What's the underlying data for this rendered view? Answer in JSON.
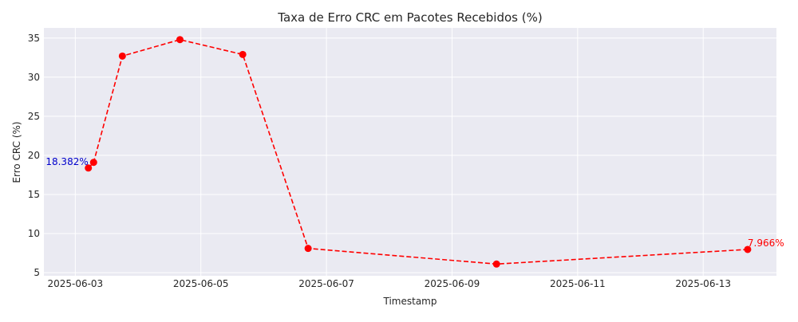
{
  "chart_data": {
    "type": "line",
    "title": "Taxa de Erro CRC em Pacotes Recebidos (%)",
    "xlabel": "Timestamp",
    "ylabel": "Erro CRC (%)",
    "x_axis_type": "date",
    "xlim": [
      "2025-06-02 12:00",
      "2025-06-14 04:00"
    ],
    "ylim": [
      4.6,
      36.3
    ],
    "x_ticks": [
      "2025-06-03",
      "2025-06-05",
      "2025-06-07",
      "2025-06-09",
      "2025-06-11",
      "2025-06-13"
    ],
    "y_ticks": [
      5,
      10,
      15,
      20,
      25,
      30,
      35
    ],
    "grid": true,
    "series": [
      {
        "color": "#ff0000",
        "line_style": "dashed",
        "marker": "circle",
        "points": [
          {
            "x": "2025-06-03 05:00",
            "y": 18.382
          },
          {
            "x": "2025-06-03 07:00",
            "y": 19.1
          },
          {
            "x": "2025-06-03 18:00",
            "y": 32.7
          },
          {
            "x": "2025-06-04 16:00",
            "y": 34.8
          },
          {
            "x": "2025-06-05 16:00",
            "y": 32.9
          },
          {
            "x": "2025-06-06 17:00",
            "y": 8.1
          },
          {
            "x": "2025-06-09 17:00",
            "y": 6.1
          },
          {
            "x": "2025-06-13 17:00",
            "y": 7.966
          }
        ]
      }
    ],
    "annotations": [
      {
        "text": "18.382%",
        "point_index": 0,
        "color": "#0000cc"
      },
      {
        "text": "7.966%",
        "point_index": 7,
        "color": "#ff0000"
      }
    ]
  }
}
